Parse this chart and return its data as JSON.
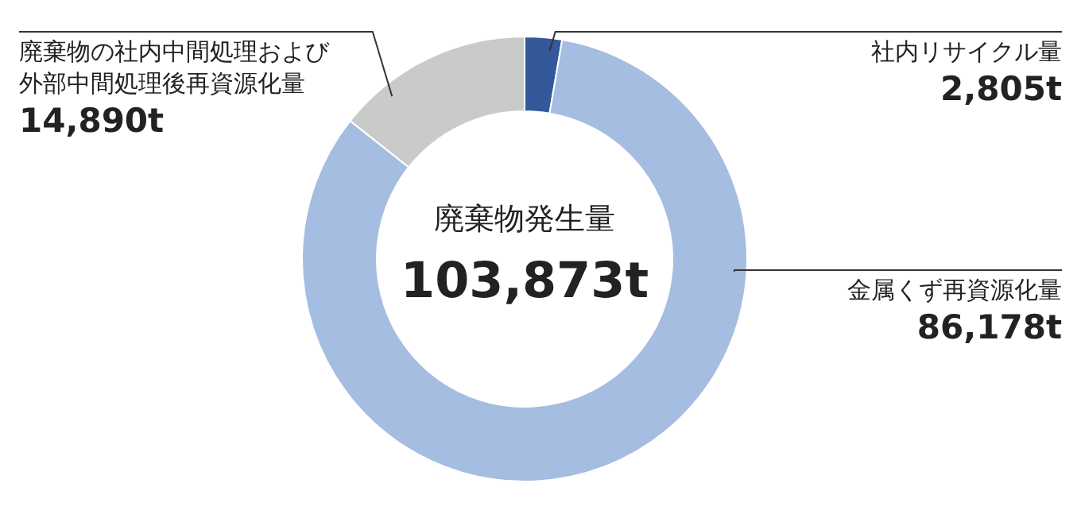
{
  "chart_data": {
    "type": "donut",
    "title": "廃棄物発生量",
    "annotations": [
      "103,873t"
    ],
    "categories": [
      "社内リサイクル量",
      "金属くず再資源化量",
      "廃棄物の社内中間処理および外部中間処理後再資源化量"
    ],
    "values": [
      2805,
      86178,
      14890
    ],
    "value_labels": [
      "2,805t",
      "86,178t",
      "14,890t"
    ],
    "colors": [
      "#33599a",
      "#a4bde1",
      "#c9cbcb"
    ],
    "legend": false
  }
}
